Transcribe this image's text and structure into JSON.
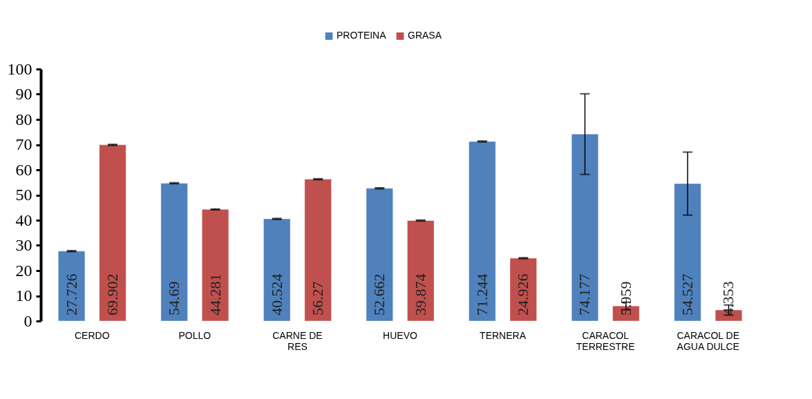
{
  "chart_data": {
    "type": "bar",
    "categories": [
      "CERDO",
      "POLLO",
      "CARNE DE RES",
      "HUEVO",
      "TERNERA",
      "CARACOL TERRESTRE",
      "CARACOL DE AGUA DULCE"
    ],
    "series": [
      {
        "name": "PROTEINA",
        "color": "#4f81bd",
        "values": [
          27.726,
          54.69,
          40.524,
          52.662,
          71.244,
          74.177,
          54.527
        ],
        "errors": [
          0.2,
          0.2,
          0.2,
          0.2,
          0.2,
          16,
          12.5
        ]
      },
      {
        "name": "GRASA",
        "color": "#c0504d",
        "values": [
          69.902,
          44.281,
          56.27,
          39.874,
          24.926,
          5.959,
          4.353
        ],
        "errors": [
          0.2,
          0.2,
          0.2,
          0.2,
          0.2,
          1.5,
          2
        ]
      }
    ],
    "ylim": [
      0,
      100
    ],
    "yticks": [
      0,
      10,
      20,
      30,
      40,
      50,
      60,
      70,
      80,
      90,
      100
    ],
    "data_labels": true,
    "legend": "top",
    "grid": false
  }
}
